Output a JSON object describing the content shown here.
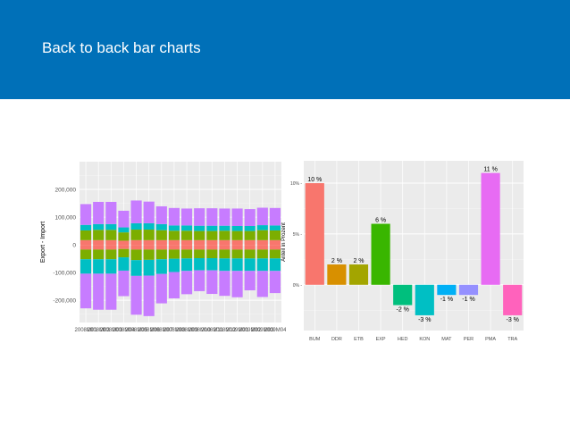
{
  "slide": {
    "title": "Back to back bar charts"
  },
  "chart_data": [
    {
      "type": "bar",
      "stacked": true,
      "diverging": true,
      "ylabel": "Export - Import",
      "xlabel": "",
      "categories": [
        "2008M01",
        "2008M02",
        "2008M03",
        "2008M04",
        "2008M05",
        "2008M06",
        "2008M07",
        "2008M08",
        "2008M09",
        "2008M10",
        "2008M11",
        "2008M12",
        "2009M01",
        "2009M02",
        "2009M03",
        "2009M04"
      ],
      "x_tick_labels": [
        "2008M01",
        "2008M02",
        "2008M03",
        "2008M04",
        "2008M05",
        "2008M06",
        "2008M07",
        "2008M08",
        "2008M09",
        "2008M10",
        "2008M11",
        "2008M12",
        "2009M01",
        "2009M02",
        "2009M03",
        "2009M04"
      ],
      "y_ticks": [
        200000,
        100000,
        0,
        -100000,
        -200000
      ],
      "y_tick_labels": [
        "200,000",
        "100,000",
        "0",
        "-100,000",
        "-200,000"
      ],
      "ylim": [
        -280000,
        300000
      ],
      "grid": true,
      "legend": "none",
      "colors": [
        "#f8766d",
        "#7cae00",
        "#00bfc4",
        "#c77cff"
      ],
      "series": [
        {
          "values": [
            17000,
            17000,
            17000,
            15000,
            17000,
            17000,
            17000,
            17000,
            17000,
            17000,
            17000,
            17000,
            17000,
            17000,
            17000,
            17000
          ]
        },
        {
          "values": [
            35000,
            37000,
            37000,
            30000,
            38000,
            38000,
            36000,
            34000,
            34000,
            33000,
            33000,
            34000,
            33000,
            33000,
            36000,
            35000
          ]
        },
        {
          "values": [
            20000,
            21000,
            21000,
            18000,
            23000,
            23000,
            22000,
            19000,
            19000,
            19000,
            19000,
            18000,
            18000,
            18000,
            18000,
            18000
          ]
        },
        {
          "values": [
            75000,
            80000,
            80000,
            60000,
            82000,
            78000,
            64000,
            63000,
            61000,
            63000,
            63000,
            62000,
            63000,
            61000,
            63000,
            63000
          ]
        },
        {
          "values": [
            -17000,
            -17000,
            -17000,
            -15000,
            -17000,
            -17000,
            -17000,
            -17000,
            -17000,
            -17000,
            -17000,
            -17000,
            -17000,
            -17000,
            -17000,
            -17000
          ]
        },
        {
          "values": [
            -35000,
            -35000,
            -35000,
            -30000,
            -38000,
            -37000,
            -35000,
            -33000,
            -32000,
            -31000,
            -31000,
            -32000,
            -32000,
            -32000,
            -32000,
            -32000
          ]
        },
        {
          "values": [
            -52000,
            -52000,
            -52000,
            -48000,
            -57000,
            -57000,
            -53000,
            -48000,
            -45000,
            -44000,
            -44000,
            -45000,
            -45000,
            -45000,
            -45000,
            -45000
          ]
        },
        {
          "values": [
            -125000,
            -130000,
            -130000,
            -92000,
            -140000,
            -146000,
            -106000,
            -95000,
            -84000,
            -75000,
            -85000,
            -90000,
            -95000,
            -70000,
            -94000,
            -80000
          ]
        }
      ]
    },
    {
      "type": "bar",
      "ylabel": "Anteil in Prozent",
      "xlabel": "",
      "categories": [
        "BUM",
        "DDR",
        "ETB",
        "EXP",
        "HED",
        "KON",
        "MAT",
        "PER",
        "PMA",
        "TRA"
      ],
      "values": [
        10,
        2,
        2,
        6,
        -2,
        -3,
        -1,
        -1,
        11,
        -3
      ],
      "data_labels": [
        "10 %",
        "2 %",
        "2 %",
        "6 %",
        "-2 %",
        "-3 %",
        "-1 %",
        "-1 %",
        "11 %",
        "-3 %"
      ],
      "colors": [
        "#f8766d",
        "#d89000",
        "#a3a500",
        "#39b600",
        "#00bf7d",
        "#00bfc4",
        "#00b0f6",
        "#9590ff",
        "#e76bf3",
        "#ff62bc"
      ],
      "y_ticks": [
        10,
        5,
        0
      ],
      "y_tick_labels": [
        "10% -",
        "5% -",
        "0% -"
      ],
      "ylim": [
        -4.5,
        12.2
      ],
      "grid": true,
      "legend": "none"
    }
  ]
}
